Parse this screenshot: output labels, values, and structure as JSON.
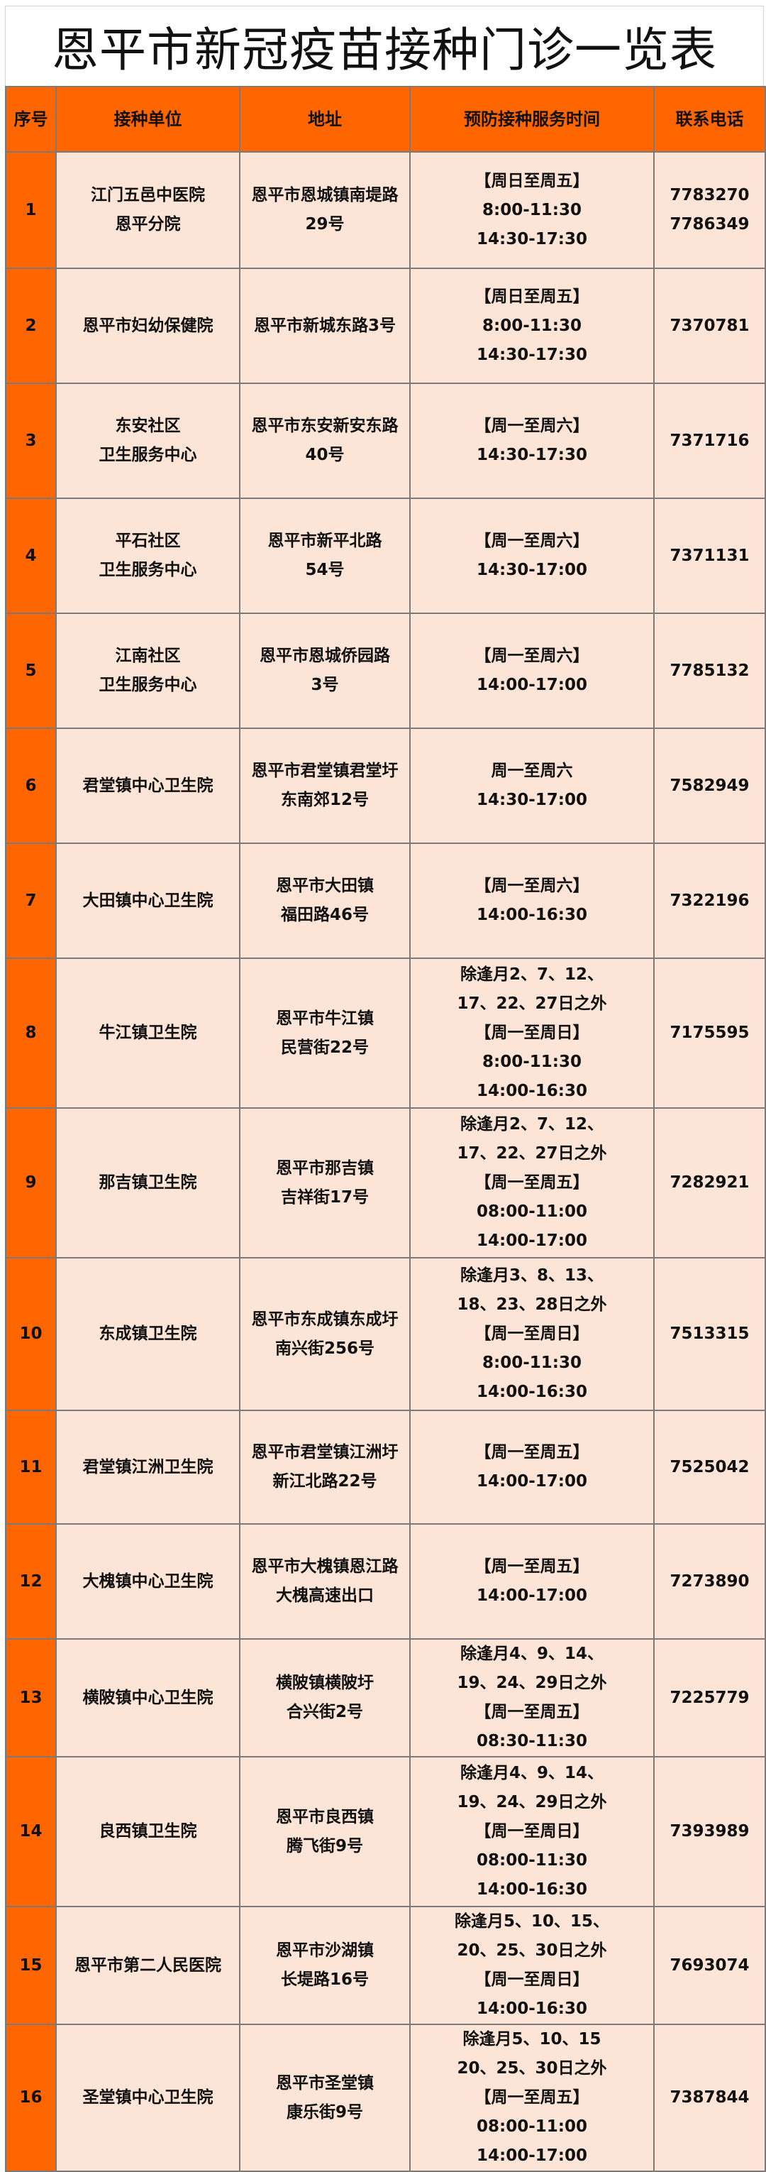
{
  "title": "恩平市新冠疫苗接种门诊一览表",
  "colors": {
    "header": "#ff6600",
    "index_column": "#ff6600",
    "cell": "#fce4d6",
    "border": "#7a7a7a"
  },
  "columns": [
    "序号",
    "接种单位",
    "地址",
    "预防接种服务时间",
    "联系电话"
  ],
  "rows": [
    {
      "no": "1",
      "unit": [
        "江门五邑中医院",
        "恩平分院"
      ],
      "address": [
        "恩平市恩城镇南堤路",
        "29号"
      ],
      "time": [
        "【周日至周五】",
        "8:00-11:30",
        "14:30-17:30"
      ],
      "phone": [
        "7783270",
        "7786349"
      ]
    },
    {
      "no": "2",
      "unit": [
        "恩平市妇幼保健院"
      ],
      "address": [
        "恩平市新城东路3号"
      ],
      "time": [
        "【周日至周五】",
        "8:00-11:30",
        "14:30-17:30"
      ],
      "phone": [
        "7370781"
      ]
    },
    {
      "no": "3",
      "unit": [
        "东安社区",
        "卫生服务中心"
      ],
      "address": [
        "恩平市东安新安东路",
        "40号"
      ],
      "time": [
        "【周一至周六】",
        "14:30-17:30"
      ],
      "phone": [
        "7371716"
      ]
    },
    {
      "no": "4",
      "unit": [
        "平石社区",
        "卫生服务中心"
      ],
      "address": [
        "恩平市新平北路",
        "54号"
      ],
      "time": [
        "【周一至周六】",
        "14:30-17:00"
      ],
      "phone": [
        "7371131"
      ]
    },
    {
      "no": "5",
      "unit": [
        "江南社区",
        "卫生服务中心"
      ],
      "address": [
        "恩平市恩城侨园路",
        "3号"
      ],
      "time": [
        "【周一至周六】",
        "14:00-17:00"
      ],
      "phone": [
        "7785132"
      ]
    },
    {
      "no": "6",
      "unit": [
        "君堂镇中心卫生院"
      ],
      "address": [
        "恩平市君堂镇君堂圩",
        "东南郊12号"
      ],
      "time": [
        "周一至周六",
        "14:30-17:00"
      ],
      "phone": [
        "7582949"
      ]
    },
    {
      "no": "7",
      "unit": [
        "大田镇中心卫生院"
      ],
      "address": [
        "恩平市大田镇",
        "福田路46号"
      ],
      "time": [
        "【周一至周六】",
        "14:00-16:30"
      ],
      "phone": [
        "7322196"
      ]
    },
    {
      "no": "8",
      "unit": [
        "牛江镇卫生院"
      ],
      "address": [
        "恩平市牛江镇",
        "民营街22号"
      ],
      "time": [
        "除逢月2、7、12、",
        "17、22、27日之外",
        "【周一至周日】",
        "8:00-11:30",
        "14:00-16:30"
      ],
      "phone": [
        "7175595"
      ]
    },
    {
      "no": "9",
      "unit": [
        "那吉镇卫生院"
      ],
      "address": [
        "恩平市那吉镇",
        "吉祥街17号"
      ],
      "time": [
        "除逢月2、7、12、",
        "17、22、27日之外",
        "【周一至周五】",
        "08:00-11:00",
        "14:00-17:00"
      ],
      "phone": [
        "7282921"
      ]
    },
    {
      "no": "10",
      "unit": [
        "东成镇卫生院"
      ],
      "address": [
        "恩平市东成镇东成圩",
        "南兴街256号"
      ],
      "time": [
        "除逢月3、8、13、",
        "18、23、28日之外",
        "【周一至周日】",
        "8:00-11:30",
        "14:00-16:30"
      ],
      "phone": [
        "7513315"
      ]
    },
    {
      "no": "11",
      "unit": [
        "君堂镇江洲卫生院"
      ],
      "address": [
        "恩平市君堂镇江洲圩",
        "新江北路22号"
      ],
      "time": [
        "【周一至周五】",
        "14:00-17:00"
      ],
      "phone": [
        "7525042"
      ]
    },
    {
      "no": "12",
      "unit": [
        "大槐镇中心卫生院"
      ],
      "address": [
        "恩平市大槐镇恩江路",
        "大槐高速出口"
      ],
      "time": [
        "【周一至周五】",
        "14:00-17:00"
      ],
      "phone": [
        "7273890"
      ]
    },
    {
      "no": "13",
      "unit": [
        "横陂镇中心卫生院"
      ],
      "address": [
        "横陂镇横陂圩",
        "合兴街2号"
      ],
      "time": [
        "除逢月4、9、14、",
        "19、24、29日之外",
        "【周一至周五】",
        "08:30-11:30"
      ],
      "phone": [
        "7225779"
      ]
    },
    {
      "no": "14",
      "unit": [
        "良西镇卫生院"
      ],
      "address": [
        "恩平市良西镇",
        "腾飞街9号"
      ],
      "time": [
        "除逢月4、9、14、",
        "19、24、29日之外",
        "【周一至周日】",
        "08:00-11:30",
        "14:00-16:30"
      ],
      "phone": [
        "7393989"
      ]
    },
    {
      "no": "15",
      "unit": [
        "恩平市第二人民医院"
      ],
      "address": [
        "恩平市沙湖镇",
        "长堤路16号"
      ],
      "time": [
        "除逢月5、10、15、",
        "20、25、30日之外",
        "【周一至周日】",
        "14:00-16:30"
      ],
      "phone": [
        "7693074"
      ]
    },
    {
      "no": "16",
      "unit": [
        "圣堂镇中心卫生院"
      ],
      "address": [
        "恩平市圣堂镇",
        "康乐街9号"
      ],
      "time": [
        "除逢月5、10、15",
        "20、25、30日之外",
        "【周一至周五】",
        "08:00-11:00",
        "14:00-17:00"
      ],
      "phone": [
        "7387844"
      ]
    }
  ]
}
